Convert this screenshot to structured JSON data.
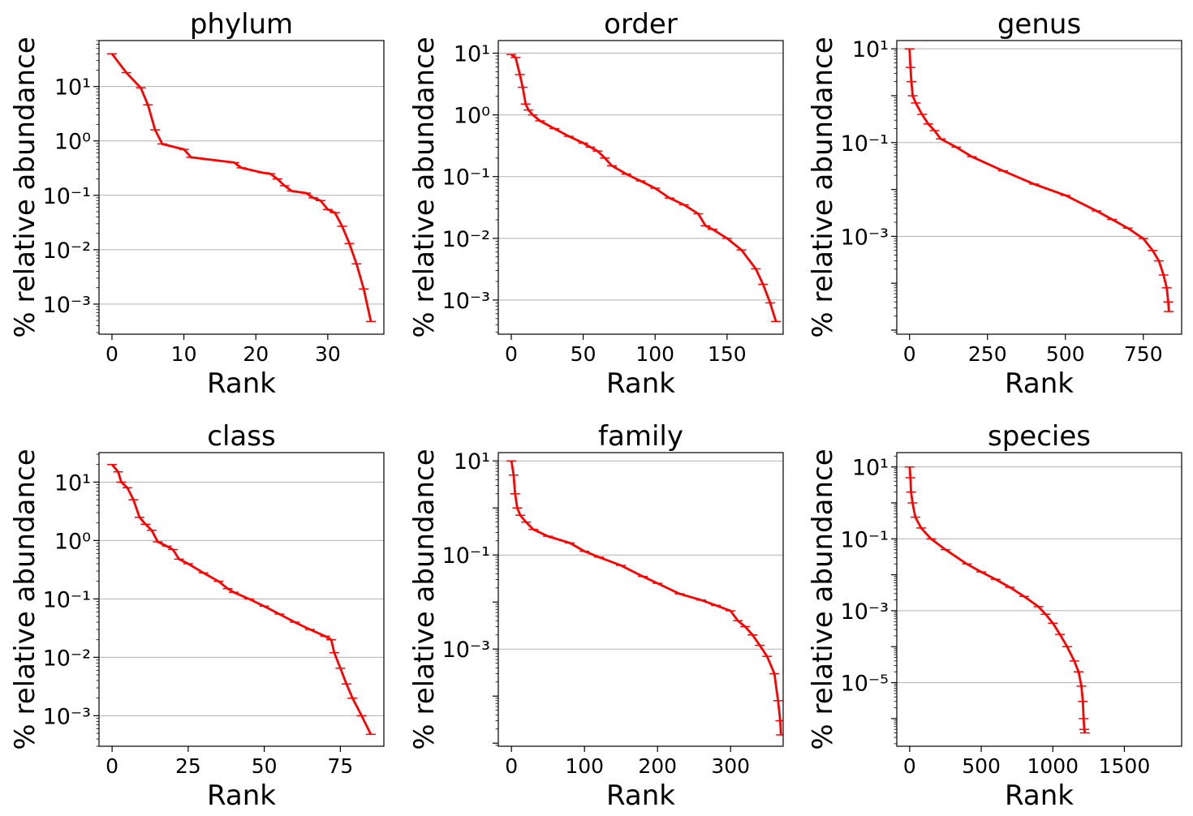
{
  "chart_data": [
    {
      "type": "line",
      "title": "phylum",
      "xlabel": "Rank",
      "ylabel": "% relative abundance",
      "yscale": "log",
      "grid": "y-major",
      "color": "#ff0000",
      "xlim": [
        -1.8,
        37.8
      ],
      "xticks": [
        0,
        10,
        20,
        30
      ],
      "ylim": [
        0.00028,
        70
      ],
      "ydecades": [
        -3,
        -2,
        -1,
        0,
        1
      ],
      "errorbars": true,
      "x": [
        0,
        2,
        4,
        5,
        6,
        7,
        10,
        11,
        17,
        18,
        21,
        22,
        23,
        24,
        25,
        27,
        28,
        29,
        30,
        31,
        32,
        33,
        34,
        35,
        36
      ],
      "y": [
        40,
        18,
        9.5,
        4.6,
        1.6,
        0.88,
        0.7,
        0.5,
        0.4,
        0.32,
        0.26,
        0.25,
        0.2,
        0.15,
        0.12,
        0.11,
        0.09,
        0.08,
        0.055,
        0.048,
        0.027,
        0.013,
        0.0055,
        0.0019,
        0.00048
      ]
    },
    {
      "type": "line",
      "title": "order",
      "xlabel": "Rank",
      "ylabel": "% relative abundance",
      "yscale": "log",
      "grid": "y-major",
      "color": "#ff0000",
      "xlim": [
        -9,
        189
      ],
      "xticks": [
        0,
        50,
        100,
        150
      ],
      "ylim": [
        0.00028,
        16
      ],
      "ydecades": [
        -3,
        -2,
        -1,
        0,
        1
      ],
      "errorbars": true,
      "x": [
        0,
        3,
        6,
        8,
        10,
        12,
        15,
        20,
        30,
        40,
        50,
        55,
        60,
        65,
        70,
        80,
        90,
        100,
        110,
        120,
        130,
        135,
        140,
        150,
        160,
        170,
        175,
        180,
        184
      ],
      "y": [
        9.5,
        8.5,
        4.5,
        2.8,
        1.5,
        1.2,
        1.0,
        0.8,
        0.6,
        0.45,
        0.35,
        0.3,
        0.26,
        0.2,
        0.15,
        0.11,
        0.085,
        0.065,
        0.045,
        0.035,
        0.025,
        0.016,
        0.014,
        0.01,
        0.0065,
        0.0032,
        0.0018,
        0.0009,
        0.00045
      ]
    },
    {
      "type": "line",
      "title": "genus",
      "xlabel": "Rank",
      "ylabel": "% relative abundance",
      "yscale": "log",
      "grid": "y-major",
      "color": "#ff0000",
      "xlim": [
        -41,
        873
      ],
      "xticks": [
        0,
        250,
        500,
        750
      ],
      "ylim": [
        8.2e-06,
        15
      ],
      "ydecades": [
        -3,
        -1,
        1
      ],
      "errorbars": true,
      "x": [
        0,
        3,
        6,
        10,
        20,
        40,
        60,
        80,
        100,
        150,
        200,
        300,
        400,
        500,
        600,
        650,
        700,
        750,
        780,
        800,
        815,
        825,
        830,
        832
      ],
      "y": [
        10,
        4,
        2,
        1,
        0.7,
        0.4,
        0.25,
        0.18,
        0.12,
        0.08,
        0.05,
        0.025,
        0.013,
        0.0075,
        0.0035,
        0.0023,
        0.0015,
        0.0009,
        0.0005,
        0.0003,
        0.00015,
        8e-05,
        4e-05,
        2.5e-05
      ]
    },
    {
      "type": "line",
      "title": "class",
      "xlabel": "Rank",
      "ylabel": "% relative abundance",
      "yscale": "log",
      "grid": "y-major",
      "color": "#ff0000",
      "xlim": [
        -4.3,
        89.3
      ],
      "xticks": [
        0,
        25,
        50,
        75
      ],
      "ylim": [
        0.0003,
        32
      ],
      "ydecades": [
        -3,
        -2,
        -1,
        0,
        1
      ],
      "errorbars": true,
      "x": [
        0,
        2,
        3,
        5,
        7,
        9,
        11,
        13,
        15,
        18,
        20,
        22,
        25,
        30,
        35,
        38,
        40,
        45,
        50,
        55,
        60,
        65,
        70,
        72,
        73,
        75,
        77,
        79,
        82,
        85
      ],
      "y": [
        20,
        15,
        10,
        8,
        5,
        2.5,
        1.9,
        1.5,
        0.95,
        0.8,
        0.7,
        0.48,
        0.4,
        0.28,
        0.2,
        0.15,
        0.13,
        0.1,
        0.075,
        0.055,
        0.04,
        0.03,
        0.023,
        0.02,
        0.012,
        0.0065,
        0.0035,
        0.002,
        0.001,
        0.00048
      ]
    },
    {
      "type": "line",
      "title": "family",
      "xlabel": "Rank",
      "ylabel": "% relative abundance",
      "yscale": "log",
      "grid": "y-major",
      "color": "#ff0000",
      "xlim": [
        -18,
        372
      ],
      "xticks": [
        0,
        100,
        200,
        300
      ],
      "ylim": [
        8.6e-06,
        15
      ],
      "ydecades": [
        -3,
        -1,
        1
      ],
      "errorbars": true,
      "x": [
        0,
        3,
        5,
        8,
        12,
        20,
        30,
        50,
        80,
        100,
        120,
        150,
        180,
        200,
        230,
        260,
        280,
        300,
        310,
        320,
        330,
        340,
        350,
        360,
        365,
        368,
        369
      ],
      "y": [
        10,
        5,
        2,
        1,
        0.7,
        0.5,
        0.35,
        0.25,
        0.18,
        0.12,
        0.09,
        0.06,
        0.035,
        0.025,
        0.015,
        0.011,
        0.0085,
        0.0065,
        0.004,
        0.003,
        0.002,
        0.0012,
        0.0007,
        0.0003,
        8e-05,
        3e-05,
        1.5e-05
      ]
    },
    {
      "type": "line",
      "title": "species",
      "xlabel": "Rank",
      "ylabel": "% relative abundance",
      "yscale": "log",
      "grid": "y-major",
      "color": "#ff0000",
      "xlim": [
        -90,
        1900
      ],
      "xticks": [
        0,
        500,
        1000,
        1500
      ],
      "ylim": [
        1.7e-07,
        25
      ],
      "ydecades": [
        -5,
        -3,
        -1,
        1
      ],
      "errorbars": true,
      "x": [
        0,
        5,
        10,
        20,
        40,
        80,
        150,
        250,
        400,
        500,
        600,
        700,
        800,
        900,
        950,
        1000,
        1050,
        1100,
        1150,
        1180,
        1200,
        1210,
        1215,
        1220,
        1225
      ],
      "y": [
        10,
        5,
        2,
        1,
        0.4,
        0.2,
        0.1,
        0.05,
        0.02,
        0.012,
        0.0075,
        0.0045,
        0.0025,
        0.0013,
        0.0008,
        0.00045,
        0.00022,
        0.0001,
        4e-05,
        2e-05,
        8e-06,
        3e-06,
        1e-06,
        5e-07,
        4e-07
      ]
    }
  ]
}
